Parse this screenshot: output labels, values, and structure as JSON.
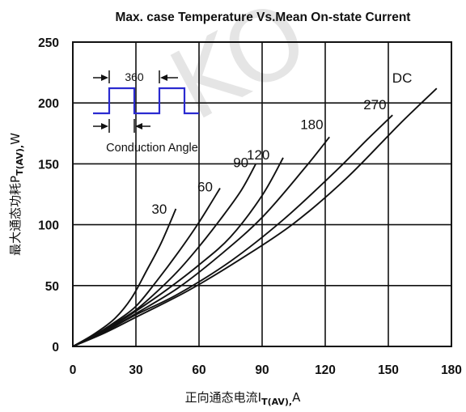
{
  "chart_data": {
    "type": "line",
    "title": "Max. case Temperature Vs.Mean On-state Current",
    "xlabel_prefix": "正向通态电流I",
    "xlabel_sub": "T(AV),",
    "xlabel_suffix": "A",
    "ylabel_prefix": "最大通态功耗P",
    "ylabel_sub": "T(AV),",
    "ylabel_suffix": "W",
    "xlim": [
      0,
      180
    ],
    "ylim": [
      0,
      250
    ],
    "x_ticks": [
      0,
      30,
      60,
      90,
      120,
      150,
      180
    ],
    "y_ticks": [
      0,
      50,
      100,
      150,
      200,
      250
    ],
    "grid": true,
    "series": [
      {
        "name": "30",
        "points": [
          [
            0,
            0
          ],
          [
            10,
            10
          ],
          [
            20,
            23
          ],
          [
            28,
            40
          ],
          [
            35,
            62
          ],
          [
            42,
            85
          ],
          [
            49,
            113
          ]
        ]
      },
      {
        "name": "60",
        "points": [
          [
            0,
            0
          ],
          [
            10,
            9
          ],
          [
            20,
            20
          ],
          [
            30,
            33
          ],
          [
            40,
            54
          ],
          [
            50,
            77
          ],
          [
            60,
            102
          ],
          [
            70,
            130
          ]
        ]
      },
      {
        "name": "90",
        "points": [
          [
            0,
            0
          ],
          [
            10,
            9
          ],
          [
            20,
            19
          ],
          [
            30,
            30
          ],
          [
            40,
            45
          ],
          [
            50,
            62
          ],
          [
            60,
            82
          ],
          [
            70,
            104
          ],
          [
            80,
            128
          ],
          [
            87,
            150
          ]
        ]
      },
      {
        "name": "120",
        "points": [
          [
            0,
            0
          ],
          [
            10,
            8
          ],
          [
            20,
            18
          ],
          [
            30,
            29
          ],
          [
            45,
            47
          ],
          [
            60,
            67
          ],
          [
            75,
            90
          ],
          [
            90,
            124
          ],
          [
            100,
            155
          ]
        ]
      },
      {
        "name": "180",
        "points": [
          [
            0,
            0
          ],
          [
            10,
            8
          ],
          [
            20,
            17
          ],
          [
            30,
            27
          ],
          [
            50,
            48
          ],
          [
            70,
            75
          ],
          [
            90,
            106
          ],
          [
            110,
            146
          ],
          [
            122,
            172
          ]
        ]
      },
      {
        "name": "270",
        "points": [
          [
            0,
            0
          ],
          [
            15,
            12
          ],
          [
            30,
            26
          ],
          [
            50,
            43
          ],
          [
            75,
            70
          ],
          [
            100,
            104
          ],
          [
            125,
            144
          ],
          [
            140,
            170
          ],
          [
            152,
            190
          ]
        ]
      },
      {
        "name": "DC",
        "points": [
          [
            0,
            0
          ],
          [
            15,
            11
          ],
          [
            30,
            24
          ],
          [
            55,
            46
          ],
          [
            80,
            72
          ],
          [
            105,
            101
          ],
          [
            130,
            138
          ],
          [
            155,
            182
          ],
          [
            173,
            212
          ]
        ]
      }
    ],
    "inset": {
      "period_label": "360",
      "caption": "Conduction Angle"
    },
    "watermark": "KO"
  }
}
